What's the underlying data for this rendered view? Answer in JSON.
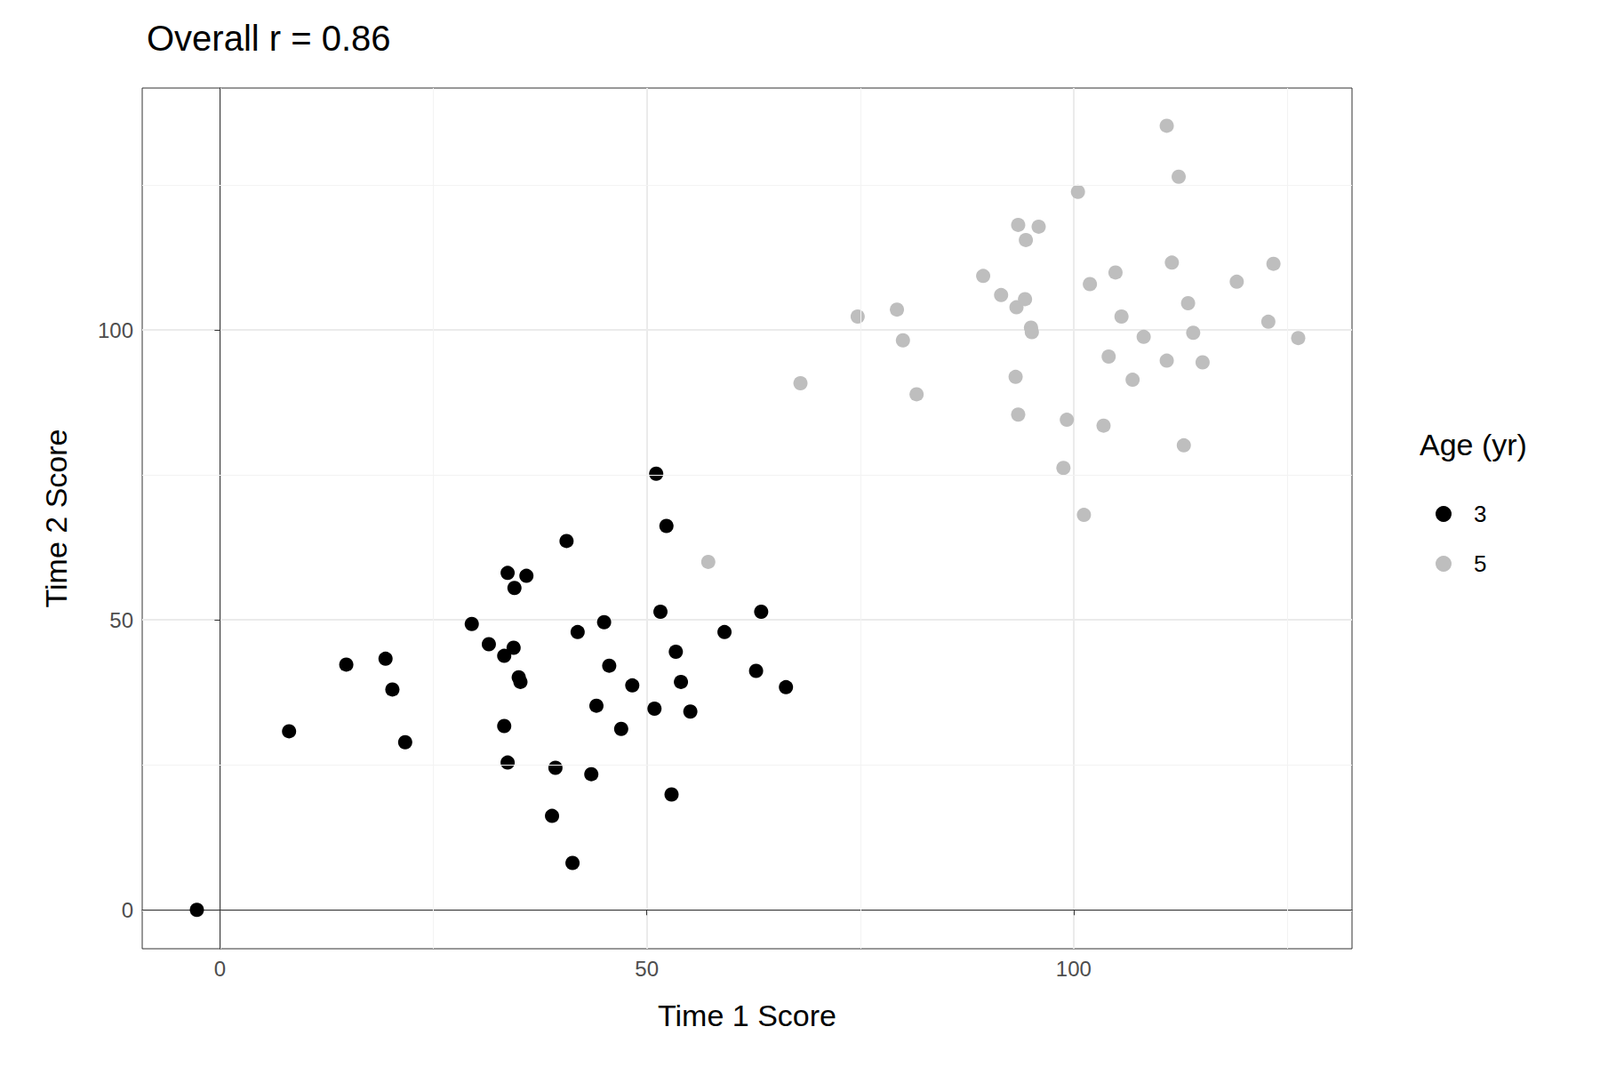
{
  "chart_data": {
    "type": "scatter",
    "title": "Overall r = 0.86",
    "x_label": "Time 1 Score",
    "y_label": "Time 2 Score",
    "legend_title": "Age (yr)",
    "legend": "right",
    "grid": true,
    "marker": "circle",
    "xlim": [
      -9.1,
      132.6
    ],
    "ylim": [
      -6.7,
      141.7
    ],
    "xticks": [
      0,
      50,
      100
    ],
    "yticks": [
      0,
      50,
      100
    ],
    "series": [
      {
        "name": "3",
        "color": "#000000",
        "x": [
          -2.7,
          8.1,
          14.8,
          19.4,
          20.2,
          21.7,
          29.5,
          31.5,
          33.7,
          34.5,
          35.9,
          33.3,
          34.4,
          35.0,
          35.2,
          33.3,
          33.7,
          39.3,
          38.9,
          41.3,
          40.6,
          41.9,
          45.0,
          45.6,
          44.1,
          43.5,
          47.0,
          48.3,
          50.9,
          51.1,
          51.6,
          52.3,
          53.4,
          54.0,
          55.1,
          52.9,
          59.1,
          63.4,
          62.8,
          66.3
        ],
        "values": [
          0,
          30.8,
          42.3,
          43.3,
          38.0,
          28.9,
          49.3,
          45.8,
          58.1,
          55.5,
          57.6,
          43.8,
          45.2,
          40.1,
          39.3,
          31.7,
          25.4,
          24.5,
          16.2,
          8.1,
          63.6,
          47.9,
          49.6,
          42.1,
          35.2,
          23.4,
          31.2,
          38.7,
          34.7,
          75.2,
          51.4,
          66.2,
          44.5,
          39.3,
          34.2,
          19.9,
          47.9,
          51.4,
          41.2,
          38.4
        ]
      },
      {
        "name": "5",
        "color": "#bebebe",
        "x": [
          57.2,
          68.0,
          74.7,
          79.3,
          80.0,
          81.6,
          89.4,
          91.5,
          93.3,
          94.3,
          93.5,
          94.4,
          95.9,
          95.0,
          95.1,
          93.2,
          93.5,
          99.2,
          98.8,
          101.2,
          100.5,
          101.9,
          104.9,
          105.6,
          104.1,
          103.5,
          108.2,
          106.9,
          110.9,
          112.3,
          111.5,
          113.4,
          114.0,
          110.9,
          115.1,
          112.9,
          119.1,
          123.4,
          122.8,
          126.3
        ],
        "values": [
          60.0,
          90.8,
          102.3,
          103.5,
          98.2,
          88.9,
          109.3,
          106.0,
          103.9,
          105.3,
          118.1,
          115.5,
          117.8,
          100.4,
          99.6,
          91.9,
          85.4,
          84.5,
          76.2,
          68.1,
          123.8,
          107.9,
          109.9,
          102.3,
          95.4,
          83.5,
          98.8,
          91.4,
          135.2,
          126.4,
          111.6,
          104.6,
          99.5,
          94.7,
          94.4,
          80.1,
          108.3,
          111.4,
          101.4,
          98.6
        ]
      }
    ]
  }
}
